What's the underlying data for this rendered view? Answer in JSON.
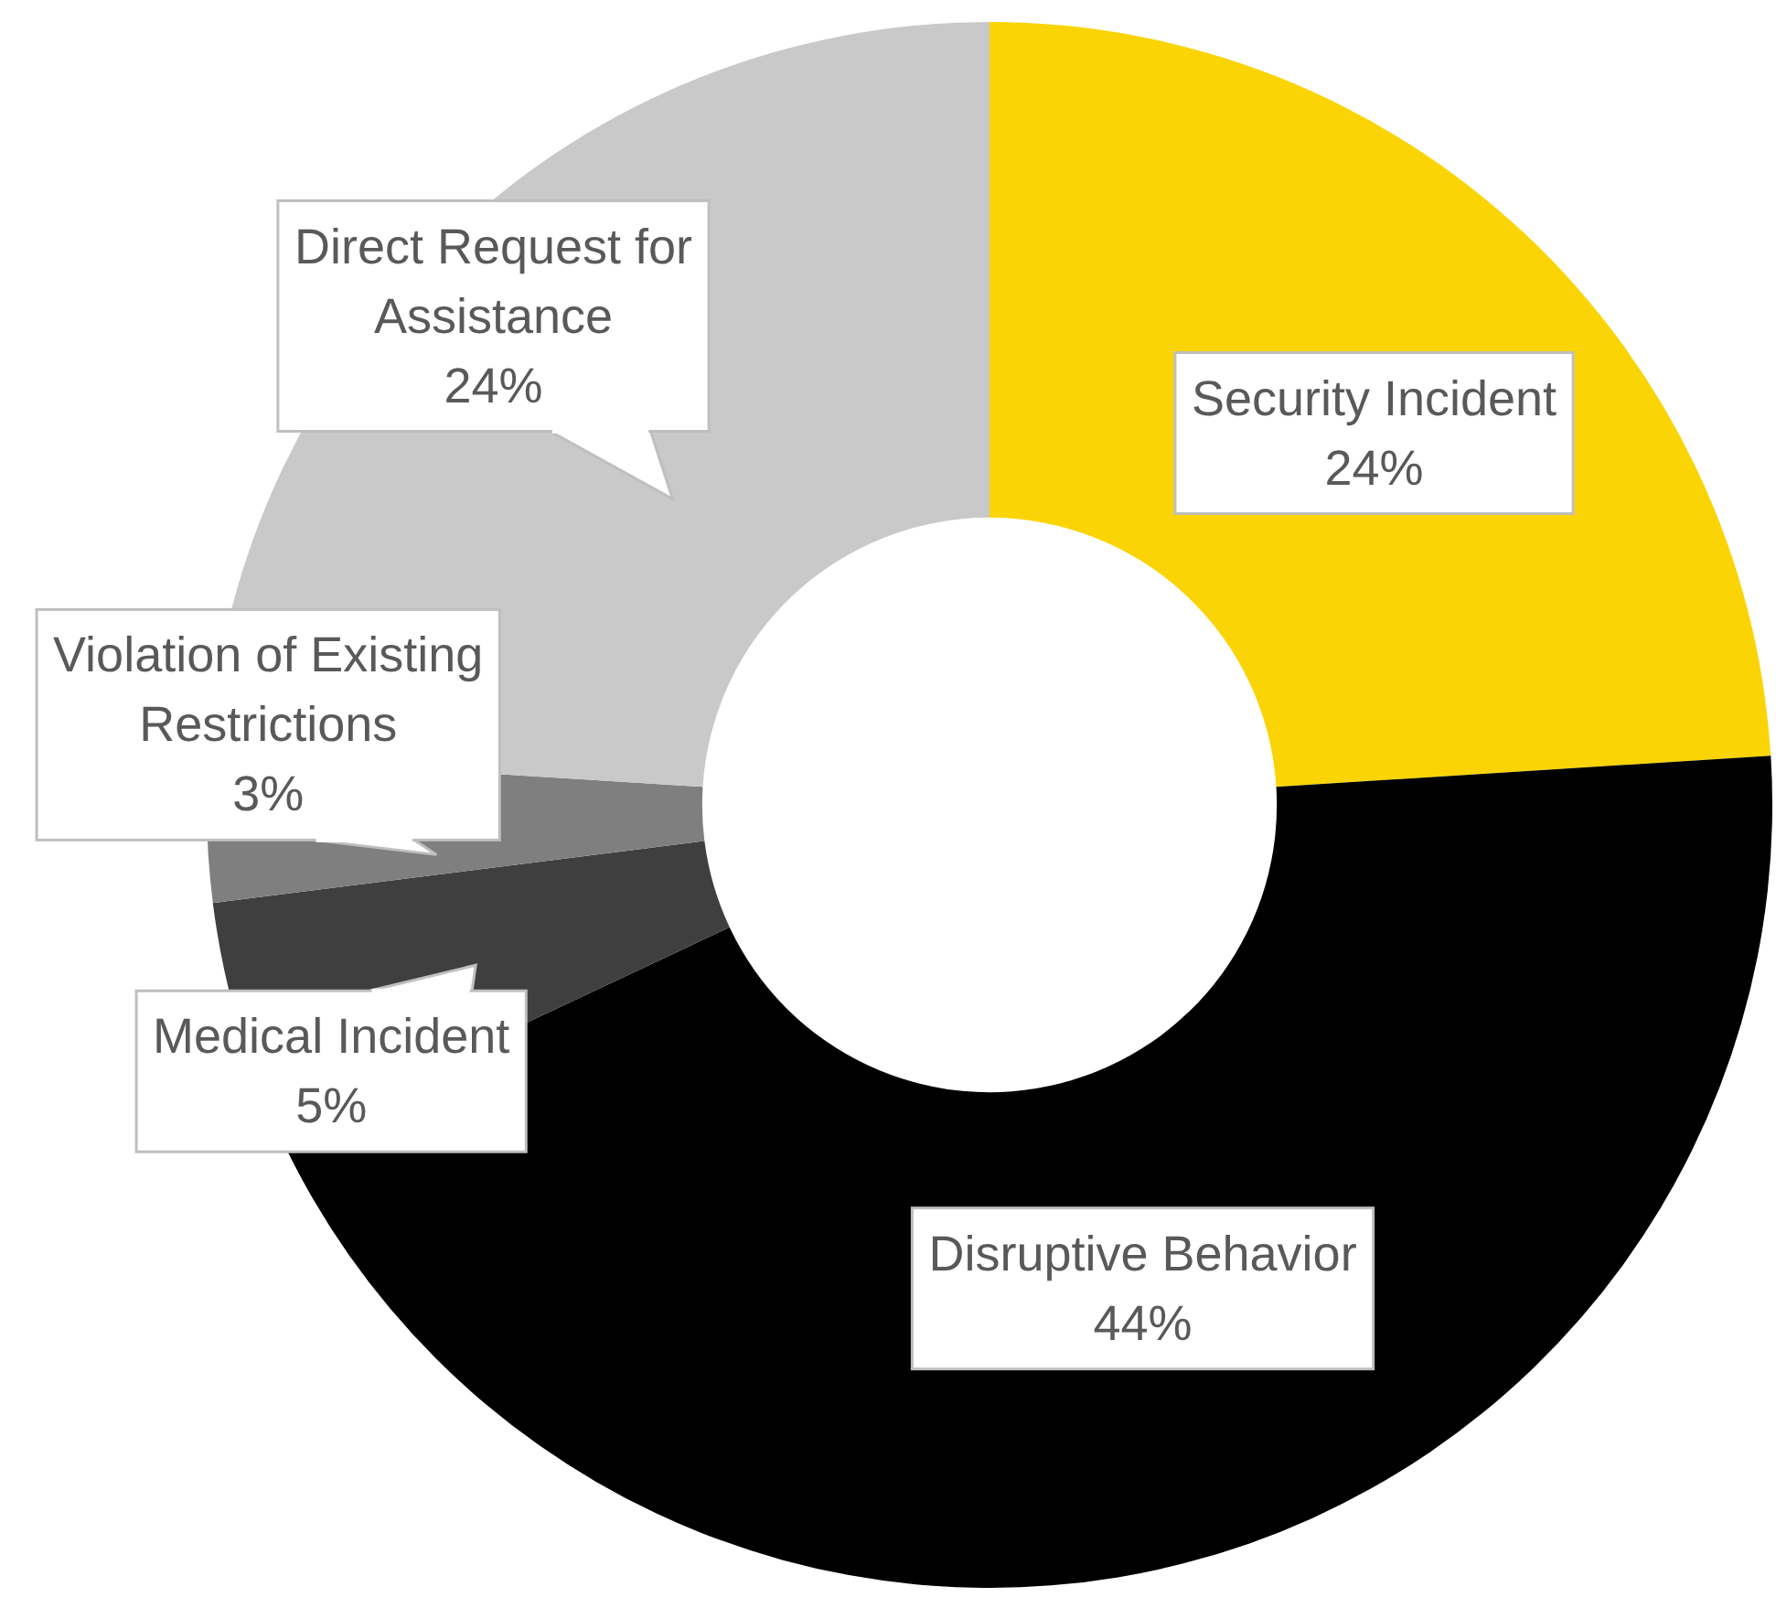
{
  "chart_data": {
    "type": "donut",
    "categories": [
      "Security Incident",
      "Disruptive Behavior",
      "Medical Incident",
      "Violation of Existing Restrictions",
      "Direct Request for Assistance"
    ],
    "values": [
      24,
      44,
      5,
      3,
      24
    ],
    "colors": [
      "#fbd405",
      "#000000",
      "#3f3f3f",
      "#7f7f7f",
      "#c9c9c9"
    ],
    "value_labels": [
      "24%",
      "44%",
      "5%",
      "3%",
      "24%"
    ]
  }
}
